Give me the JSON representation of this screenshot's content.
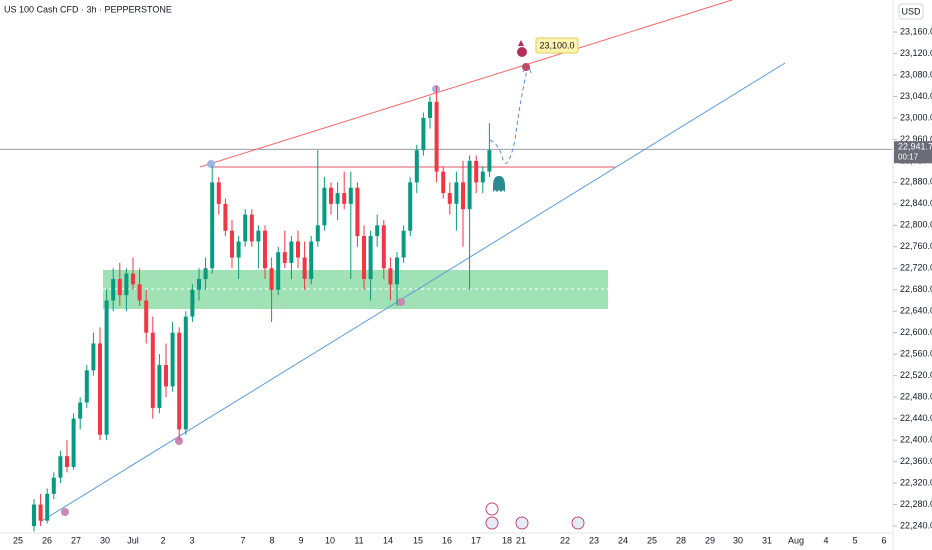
{
  "chart_data": {
    "type": "candlestick",
    "title": "US 100 Cash CFD · 3h · PEPPERSTONE",
    "currency": "USD",
    "up_color": "#089981",
    "down_color": "#f23645",
    "x_labels": [
      "25",
      "26",
      "27",
      "30",
      "Jul",
      "2",
      "3",
      "7",
      "8",
      "9",
      "10",
      "11",
      "14",
      "15",
      "16",
      "17",
      "18",
      "21",
      "22",
      "23",
      "24",
      "25",
      "28",
      "29",
      "30",
      "31",
      "Aug",
      "4",
      "5",
      "6"
    ],
    "open": [
      22240,
      22280,
      22250,
      22300,
      22330,
      22370,
      22350,
      22440,
      22470,
      22530,
      22580,
      22410,
      22660,
      22700,
      22670,
      22710,
      22690,
      22660,
      22600,
      22460,
      22540,
      22500,
      22600,
      22420,
      22630,
      22680,
      22700,
      22720,
      22880,
      22840,
      22790,
      22740,
      22770,
      22820,
      22770,
      22790,
      22720,
      22680,
      22750,
      22730,
      22770,
      22740,
      22700,
      22770,
      22800,
      22870,
      22840,
      22860,
      22840,
      22870,
      22780,
      22700,
      22780,
      22800,
      22720,
      22690,
      22740,
      22790,
      22880,
      22940,
      23000,
      23030,
      22900,
      22860,
      22840,
      22880,
      22830,
      22920,
      22880,
      22900
    ],
    "high": [
      22290,
      22300,
      22310,
      22340,
      22380,
      22400,
      22450,
      22480,
      22540,
      22600,
      22610,
      22680,
      22720,
      22730,
      22720,
      22740,
      22720,
      22680,
      22630,
      22560,
      22580,
      22620,
      22610,
      22640,
      22690,
      22720,
      22740,
      22910,
      22890,
      22850,
      22810,
      22780,
      22830,
      22830,
      22800,
      22800,
      22740,
      22760,
      22790,
      22780,
      22790,
      22770,
      22780,
      22940,
      22890,
      22880,
      22880,
      22900,
      22900,
      22880,
      22800,
      22790,
      22820,
      22810,
      22740,
      22750,
      22800,
      22890,
      22950,
      23010,
      23040,
      23060,
      22910,
      22880,
      22900,
      22920,
      22930,
      22930,
      22910,
      22990
    ],
    "low": [
      22230,
      22240,
      22245,
      22290,
      22320,
      22340,
      22345,
      22420,
      22460,
      22520,
      22400,
      22400,
      22640,
      22650,
      22640,
      22680,
      22650,
      22580,
      22440,
      22450,
      22480,
      22490,
      22400,
      22410,
      22620,
      22660,
      22680,
      22710,
      22820,
      22780,
      22720,
      22700,
      22760,
      22760,
      22720,
      22700,
      22620,
      22670,
      22720,
      22700,
      22720,
      22680,
      22690,
      22760,
      22790,
      22820,
      22810,
      22830,
      22700,
      22760,
      22680,
      22660,
      22760,
      22700,
      22660,
      22650,
      22730,
      22780,
      22860,
      22930,
      22980,
      22880,
      22850,
      22820,
      22790,
      22760,
      22680,
      22860,
      22860,
      22890
    ],
    "close": [
      22280,
      22250,
      22300,
      22330,
      22370,
      22350,
      22440,
      22470,
      22530,
      22580,
      22410,
      22660,
      22700,
      22670,
      22710,
      22690,
      22660,
      22600,
      22460,
      22540,
      22500,
      22600,
      22420,
      22630,
      22680,
      22700,
      22720,
      22880,
      22840,
      22790,
      22740,
      22770,
      22820,
      22770,
      22790,
      22720,
      22680,
      22750,
      22730,
      22770,
      22740,
      22700,
      22770,
      22800,
      22870,
      22840,
      22860,
      22840,
      22870,
      22780,
      22700,
      22780,
      22800,
      22720,
      22690,
      22740,
      22790,
      22880,
      22940,
      23000,
      23030,
      22900,
      22860,
      22840,
      22880,
      22830,
      22920,
      22880,
      22900,
      22940
    ],
    "ylim": [
      22227,
      23219.6
    ],
    "yticks": [
      {
        "value": 22240,
        "label": "22,240.0"
      },
      {
        "value": 22280,
        "label": "22,280.0"
      },
      {
        "value": 22320,
        "label": "22,320.0"
      },
      {
        "value": 22360,
        "label": "22,360.0"
      },
      {
        "value": 22400,
        "label": "22,400.0"
      },
      {
        "value": 22440,
        "label": "22,440.0"
      },
      {
        "value": 22480,
        "label": "22,480.0"
      },
      {
        "value": 22520,
        "label": "22,520.0"
      },
      {
        "value": 22560,
        "label": "22,560.0"
      },
      {
        "value": 22600,
        "label": "22,600.0"
      },
      {
        "value": 22640,
        "label": "22,640.0"
      },
      {
        "value": 22680,
        "label": "22,680.0"
      },
      {
        "value": 22720,
        "label": "22,720.0"
      },
      {
        "value": 22760,
        "label": "22,760.0"
      },
      {
        "value": 22800,
        "label": "22,800.0"
      },
      {
        "value": 22840,
        "label": "22,840.0"
      },
      {
        "value": 22880,
        "label": "22,880.0"
      },
      {
        "value": 22920,
        "label": "22,920.0"
      },
      {
        "value": 22960,
        "label": "22,960.0"
      },
      {
        "value": 23000,
        "label": "23,000.0"
      },
      {
        "value": 23040,
        "label": "23,040.0"
      },
      {
        "value": 23080,
        "label": "23,080.0"
      },
      {
        "value": 23120,
        "label": "23,120.0"
      },
      {
        "value": 23160,
        "label": "23,160.0"
      }
    ],
    "last_price": {
      "value": 22941.7,
      "label": "22,941.7"
    },
    "countdown": "00:17",
    "target_label": "23,100.0"
  }
}
